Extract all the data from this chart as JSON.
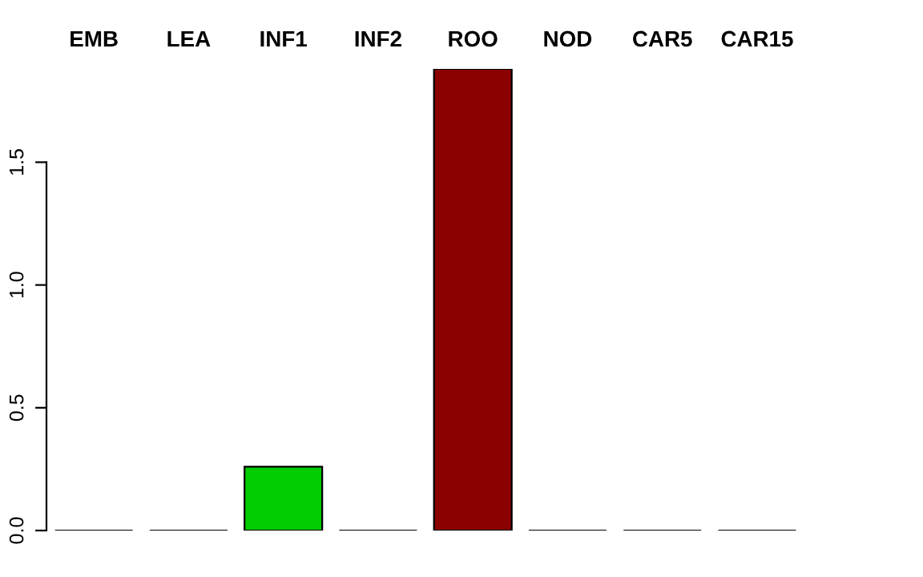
{
  "chart_data": {
    "type": "bar",
    "categories": [
      "EMB",
      "LEA",
      "INF1",
      "INF2",
      "ROO",
      "NOD",
      "CAR5",
      "CAR15"
    ],
    "values": [
      0,
      0,
      0.26,
      0,
      1.88,
      0,
      0,
      0
    ],
    "colors": [
      "#000000",
      "#000000",
      "#00cc00",
      "#000000",
      "#8b0000",
      "#000000",
      "#000000",
      "#000000"
    ],
    "ylim": [
      0,
      1.88
    ],
    "yticks": [
      {
        "value": 0,
        "label": "0.0"
      },
      {
        "value": 0.5,
        "label": "0.5"
      },
      {
        "value": 1.0,
        "label": "1.0"
      },
      {
        "value": 1.5,
        "label": "1.5"
      }
    ],
    "grid": false,
    "legend": false
  }
}
